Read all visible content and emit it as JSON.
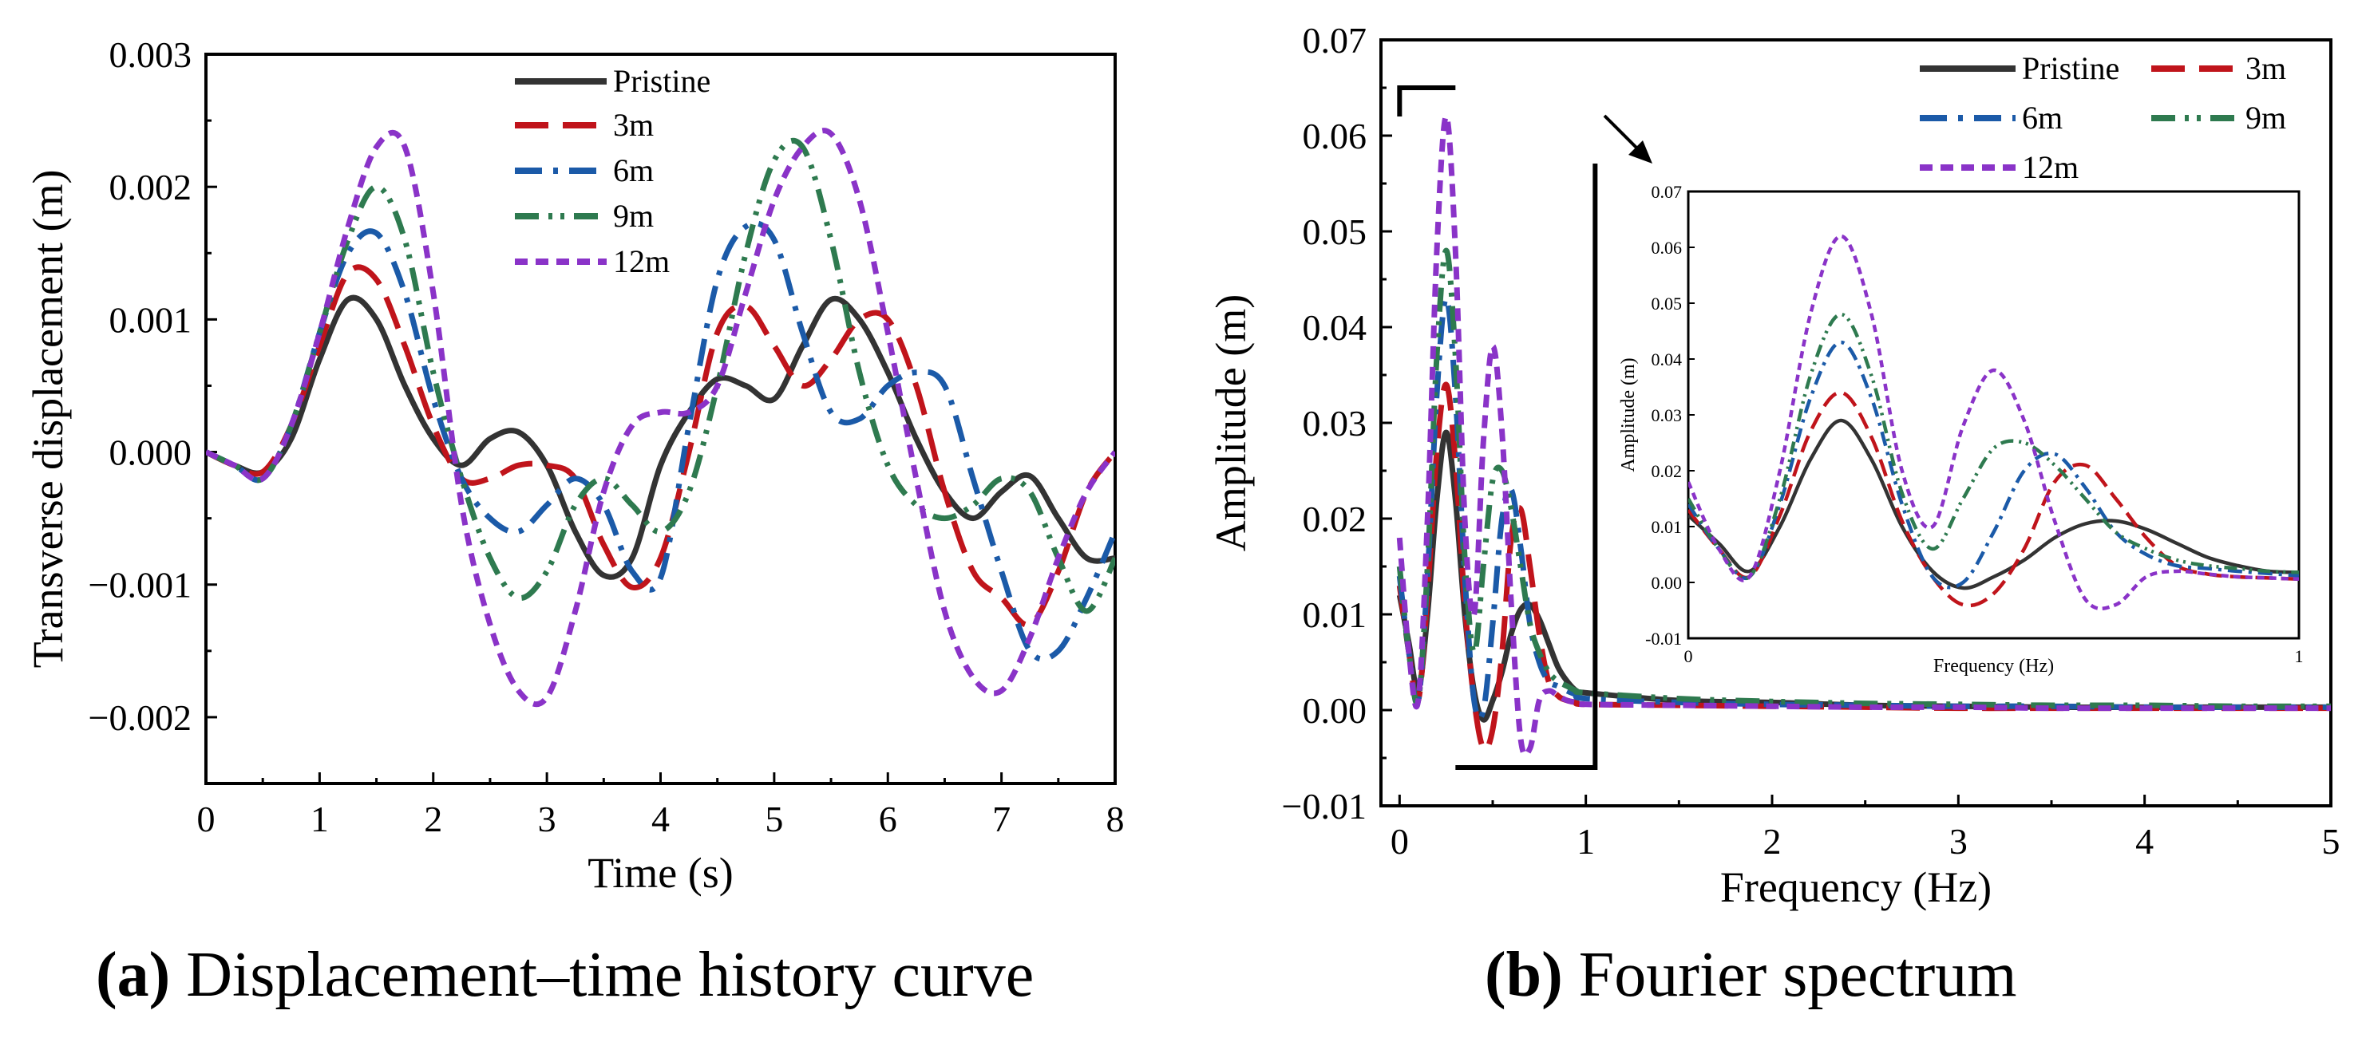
{
  "chart_data": [
    {
      "id": "a",
      "type": "line",
      "caption_letter": "a",
      "caption_text": "Displacement–time history curve",
      "xlabel": "Time (s)",
      "ylabel": "Transverse displacement (m)",
      "xlim": [
        0,
        8
      ],
      "ylim": [
        -0.0025,
        0.003
      ],
      "xticks": [
        0,
        1,
        2,
        3,
        4,
        5,
        6,
        7,
        8
      ],
      "xtick_labels": [
        "0",
        "1",
        "2",
        "3",
        "4",
        "5",
        "6",
        "7",
        "8"
      ],
      "yticks": [
        -0.002,
        -0.001,
        0,
        0.001,
        0.002,
        0.003
      ],
      "ytick_labels": [
        "−0.002",
        "−0.001",
        "0.000",
        "0.001",
        "0.002",
        "0.003"
      ],
      "legend_position": "top-center",
      "series": [
        {
          "name": "Pristine",
          "color": "#333333",
          "dash": "solid",
          "x": [
            0,
            0.25,
            0.5,
            0.75,
            1,
            1.25,
            1.5,
            1.75,
            2,
            2.25,
            2.5,
            2.75,
            3,
            3.25,
            3.5,
            3.75,
            4,
            4.25,
            4.5,
            4.75,
            5,
            5.25,
            5.5,
            5.75,
            6,
            6.25,
            6.5,
            6.75,
            7,
            7.25,
            7.5,
            7.75,
            8
          ],
          "y": [
            0,
            -0.0001,
            -0.00015,
            0.0001,
            0.0007,
            0.00115,
            0.001,
            0.0005,
            0.0001,
            -0.0001,
            0.0001,
            0.00015,
            -0.0001,
            -0.0006,
            -0.00093,
            -0.0008,
            -0.0001,
            0.0003,
            0.00055,
            0.0005,
            0.0004,
            0.0008,
            0.00115,
            0.001,
            0.0006,
            0.0001,
            -0.0003,
            -0.0005,
            -0.0003,
            -0.00018,
            -0.0005,
            -0.0008,
            -0.0008
          ]
        },
        {
          "name": "3m",
          "color": "#c0141b",
          "dash": "long-dash",
          "x": [
            0,
            0.25,
            0.5,
            0.75,
            1,
            1.25,
            1.5,
            1.75,
            2,
            2.25,
            2.5,
            2.75,
            3,
            3.25,
            3.5,
            3.75,
            4,
            4.25,
            4.5,
            4.75,
            5,
            5.25,
            5.5,
            5.75,
            6,
            6.25,
            6.5,
            6.75,
            7,
            7.25,
            7.5,
            7.75,
            8
          ],
          "y": [
            0,
            -0.0001,
            -0.00015,
            0.0002,
            0.0008,
            0.00135,
            0.0013,
            0.0008,
            0.0002,
            -0.0002,
            -0.0002,
            -0.0001,
            -0.0001,
            -0.0002,
            -0.0007,
            -0.00102,
            -0.0008,
            0,
            0.0009,
            0.0011,
            0.0008,
            0.0005,
            0.0007,
            0.001,
            0.001,
            0.0005,
            -0.0003,
            -0.0009,
            -0.0011,
            -0.0013,
            -0.0009,
            -0.0003,
            0
          ]
        },
        {
          "name": "6m",
          "color": "#1b5aa8",
          "dash": "dash-dot",
          "x": [
            0,
            0.25,
            0.5,
            0.75,
            1,
            1.25,
            1.5,
            1.75,
            2,
            2.25,
            2.5,
            2.75,
            3,
            3.25,
            3.5,
            3.75,
            4,
            4.25,
            4.5,
            4.75,
            5,
            5.25,
            5.5,
            5.75,
            6,
            6.25,
            6.5,
            6.75,
            7,
            7.25,
            7.5,
            7.75,
            8
          ],
          "y": [
            0,
            -0.0001,
            -0.0002,
            0.0002,
            0.0009,
            0.0015,
            0.00165,
            0.0012,
            0.0004,
            -0.0002,
            -0.0005,
            -0.0006,
            -0.0004,
            -0.0002,
            -0.0004,
            -0.0009,
            -0.00095,
            0.0002,
            0.0013,
            0.0017,
            0.0016,
            0.0009,
            0.0003,
            0.00025,
            0.0005,
            0.0006,
            0.0005,
            -0.0002,
            -0.0009,
            -0.0015,
            -0.0015,
            -0.0011,
            -0.0006
          ]
        },
        {
          "name": "9m",
          "color": "#2e7a4f",
          "dash": "dash-dot-dot",
          "x": [
            0,
            0.25,
            0.5,
            0.75,
            1,
            1.25,
            1.5,
            1.75,
            2,
            2.25,
            2.5,
            2.75,
            3,
            3.25,
            3.5,
            3.75,
            4,
            4.25,
            4.5,
            4.75,
            5,
            5.25,
            5.5,
            5.75,
            6,
            6.25,
            6.5,
            6.75,
            7,
            7.25,
            7.5,
            7.75,
            8
          ],
          "y": [
            0,
            -0.0001,
            -0.0002,
            0.0002,
            0.0009,
            0.0016,
            0.002,
            0.0016,
            0.0006,
            -0.0002,
            -0.0008,
            -0.0011,
            -0.0009,
            -0.0004,
            -0.0002,
            -0.0004,
            -0.0006,
            -0.0003,
            0.0005,
            0.0015,
            0.0022,
            0.0023,
            0.0016,
            0.0006,
            -0.0001,
            -0.0004,
            -0.0005,
            -0.0004,
            -0.0002,
            -0.0003,
            -0.0008,
            -0.0012,
            -0.0008
          ]
        },
        {
          "name": "12m",
          "color": "#8a33c8",
          "dash": "short-dash",
          "x": [
            0,
            0.25,
            0.5,
            0.75,
            1,
            1.25,
            1.5,
            1.75,
            2,
            2.25,
            2.5,
            2.75,
            3,
            3.25,
            3.5,
            3.75,
            4,
            4.25,
            4.5,
            4.75,
            5,
            5.25,
            5.5,
            5.75,
            6,
            6.25,
            6.5,
            6.75,
            7,
            7.25,
            7.5,
            7.75,
            8
          ],
          "y": [
            0,
            -0.0001,
            -0.0002,
            0.0002,
            0.0009,
            0.0017,
            0.0023,
            0.0023,
            0.0012,
            -0.0004,
            -0.0013,
            -0.0018,
            -0.00185,
            -0.0012,
            -0.0003,
            0.0002,
            0.0003,
            0.0003,
            0.0005,
            0.0012,
            0.0019,
            0.0023,
            0.0024,
            0.0019,
            0.0009,
            -0.0002,
            -0.0012,
            -0.0017,
            -0.0018,
            -0.0014,
            -0.0008,
            -0.0003,
            0
          ]
        }
      ]
    },
    {
      "id": "b",
      "type": "line",
      "caption_letter": "b",
      "caption_text": "Fourier spectrum",
      "xlabel": "Frequency (Hz)",
      "ylabel": "Amplitude (m)",
      "xlim": [
        -0.1,
        5
      ],
      "ylim": [
        -0.01,
        0.07
      ],
      "xticks": [
        0,
        1,
        2,
        3,
        4,
        5
      ],
      "xtick_labels": [
        "0",
        "1",
        "2",
        "3",
        "4",
        "5"
      ],
      "yticks": [
        -0.01,
        0,
        0.01,
        0.02,
        0.03,
        0.04,
        0.05,
        0.06,
        0.07
      ],
      "ytick_labels": [
        "−0.01",
        "0.00",
        "0.01",
        "0.02",
        "0.03",
        "0.04",
        "0.05",
        "0.06",
        "0.07"
      ],
      "legend_position": "top-right",
      "series": [
        {
          "name": "Pristine",
          "color": "#333333",
          "dash": "solid",
          "x": [
            0,
            0.05,
            0.1,
            0.15,
            0.2,
            0.25,
            0.3,
            0.35,
            0.4,
            0.45,
            0.5,
            0.55,
            0.6,
            0.65,
            0.7,
            0.75,
            0.8,
            0.85,
            0.9,
            0.95,
            1,
            1.5,
            2,
            2.5,
            3,
            3.5,
            4,
            4.5,
            5
          ],
          "y": [
            0.012,
            0.007,
            0.002,
            0.01,
            0.022,
            0.029,
            0.022,
            0.01,
            0.002,
            -0.001,
            0.001,
            0.004,
            0.008,
            0.0105,
            0.011,
            0.0095,
            0.007,
            0.0045,
            0.003,
            0.002,
            0.0018,
            0.001,
            0.0008,
            0.0005,
            0.0004,
            0.0003,
            0.0003,
            0.0003,
            0.0003
          ]
        },
        {
          "name": "3m",
          "color": "#c0141b",
          "dash": "long-dash",
          "x": [
            0,
            0.05,
            0.1,
            0.15,
            0.2,
            0.25,
            0.3,
            0.35,
            0.4,
            0.45,
            0.5,
            0.55,
            0.6,
            0.65,
            0.7,
            0.75,
            0.8,
            0.85,
            0.9,
            0.95,
            1,
            1.5,
            2,
            2.5,
            3,
            3.5,
            4,
            4.5,
            5
          ],
          "y": [
            0.013,
            0.006,
            0.001,
            0.012,
            0.027,
            0.034,
            0.026,
            0.011,
            0.001,
            -0.004,
            -0.002,
            0.006,
            0.018,
            0.021,
            0.015,
            0.008,
            0.003,
            0.0015,
            0.001,
            0.0008,
            0.0006,
            0.0005,
            0.0004,
            0.0003,
            0.0002,
            0.0002,
            0.0002,
            0.0002,
            0.0002
          ]
        },
        {
          "name": "6m",
          "color": "#1b5aa8",
          "dash": "dash-dot",
          "x": [
            0,
            0.05,
            0.1,
            0.15,
            0.2,
            0.25,
            0.3,
            0.35,
            0.4,
            0.45,
            0.5,
            0.55,
            0.6,
            0.65,
            0.7,
            0.75,
            0.8,
            0.85,
            0.9,
            0.95,
            1,
            1.5,
            2,
            2.5,
            3,
            3.5,
            4,
            4.5,
            5
          ],
          "y": [
            0.014,
            0.006,
            0.001,
            0.014,
            0.033,
            0.043,
            0.033,
            0.014,
            0.001,
            0,
            0.009,
            0.02,
            0.023,
            0.017,
            0.009,
            0.005,
            0.003,
            0.0025,
            0.002,
            0.0016,
            0.0012,
            0.0008,
            0.0006,
            0.0005,
            0.0004,
            0.0004,
            0.0003,
            0.0003,
            0.0003
          ]
        },
        {
          "name": "9m",
          "color": "#2e7a4f",
          "dash": "dash-dot-dot",
          "x": [
            0,
            0.05,
            0.1,
            0.15,
            0.2,
            0.25,
            0.3,
            0.35,
            0.4,
            0.45,
            0.5,
            0.55,
            0.6,
            0.65,
            0.7,
            0.75,
            0.8,
            0.85,
            0.9,
            0.95,
            1,
            1.5,
            2,
            2.5,
            3,
            3.5,
            4,
            4.5,
            5
          ],
          "y": [
            0.015,
            0.006,
            0.001,
            0.015,
            0.037,
            0.048,
            0.037,
            0.016,
            0.006,
            0.015,
            0.024,
            0.025,
            0.021,
            0.015,
            0.009,
            0.006,
            0.004,
            0.003,
            0.0025,
            0.002,
            0.0018,
            0.0012,
            0.0009,
            0.0007,
            0.0006,
            0.0005,
            0.0005,
            0.0004,
            0.0004
          ]
        },
        {
          "name": "12m",
          "color": "#8a33c8",
          "dash": "short-dash",
          "x": [
            0,
            0.05,
            0.1,
            0.15,
            0.2,
            0.25,
            0.3,
            0.35,
            0.4,
            0.45,
            0.5,
            0.55,
            0.6,
            0.65,
            0.7,
            0.75,
            0.8,
            0.85,
            0.9,
            0.95,
            1,
            1.5,
            2,
            2.5,
            3,
            3.5,
            4,
            4.5,
            5
          ],
          "y": [
            0.018,
            0.006,
            0.001,
            0.02,
            0.048,
            0.062,
            0.048,
            0.02,
            0.01,
            0.028,
            0.038,
            0.029,
            0.011,
            -0.003,
            -0.004,
            0.001,
            0.002,
            0.0015,
            0.001,
            0.0008,
            0.0006,
            0.0005,
            0.0004,
            0.0003,
            0.0003,
            0.0002,
            0.0002,
            0.0002,
            0.0002
          ]
        }
      ],
      "inset": {
        "xlabel": "Frequency (Hz)",
        "ylabel": "Amplitude (m)",
        "xlim": [
          0,
          1
        ],
        "ylim": [
          -0.01,
          0.07
        ],
        "xticks": [
          0,
          1
        ],
        "xtick_labels": [
          "0",
          "1"
        ],
        "yticks": [
          -0.01,
          0,
          0.01,
          0.02,
          0.03,
          0.04,
          0.05,
          0.06,
          0.07
        ],
        "ytick_labels": [
          "-0.01",
          "0.00",
          "0.01",
          "0.02",
          "0.03",
          "0.04",
          "0.05",
          "0.06",
          "0.07"
        ],
        "zoom_region": {
          "x": [
            0,
            1.05
          ],
          "y": [
            -0.006,
            0.065
          ]
        }
      }
    }
  ]
}
